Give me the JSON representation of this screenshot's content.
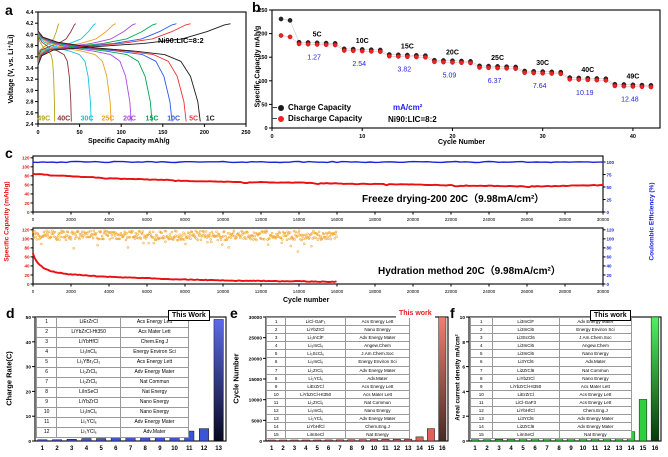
{
  "chart_data": [
    {
      "id": "a",
      "panel_label": "a",
      "type": "line",
      "xlabel": "Specific Capacity mAh/g",
      "ylabel": "Voltage (V, vs. Li⁺/Li)",
      "annotation": "Ni90:LIC=8:2",
      "xlim": [
        0,
        250
      ],
      "xticks": [
        0,
        50,
        100,
        150,
        200,
        250
      ],
      "ylim": [
        2.4,
        4.4
      ],
      "yticks": [
        2.4,
        2.6,
        2.8,
        3.0,
        3.2,
        3.4,
        3.6,
        3.8,
        4.0,
        4.2,
        4.4
      ],
      "series": [
        {
          "rate": "1C",
          "color": "#1a1a1a",
          "discharge_capacity": 195,
          "charge_capacity": 231,
          "label_x": 207
        },
        {
          "rate": "5C",
          "color": "#f03333",
          "discharge_capacity": 178,
          "charge_capacity": 183,
          "label_x": 187
        },
        {
          "rate": "10C",
          "color": "#2b59f0",
          "discharge_capacity": 161,
          "charge_capacity": 166,
          "label_x": 163
        },
        {
          "rate": "15C",
          "color": "#00a551",
          "discharge_capacity": 137,
          "charge_capacity": 142,
          "label_x": 137
        },
        {
          "rate": "20C",
          "color": "#a94ae0",
          "discharge_capacity": 112,
          "charge_capacity": 117,
          "label_x": 110
        },
        {
          "rate": "25C",
          "color": "#e8a31e",
          "discharge_capacity": 88,
          "charge_capacity": 93,
          "label_x": 84
        },
        {
          "rate": "30C",
          "color": "#19c3d8",
          "discharge_capacity": 64,
          "charge_capacity": 69,
          "label_x": 59
        },
        {
          "rate": "40C",
          "color": "#8e3034",
          "discharge_capacity": 40,
          "charge_capacity": 45,
          "label_x": 31
        },
        {
          "rate": "49C",
          "color": "#b8a60e",
          "discharge_capacity": 20,
          "charge_capacity": 25,
          "label_x": 7
        }
      ]
    },
    {
      "id": "b",
      "panel_label": "b",
      "type": "scatter",
      "xlabel": "Cycle Number",
      "ylabel": "Specific Capacity mAh/g",
      "xlim": [
        0,
        43
      ],
      "xticks": [
        0,
        10,
        20,
        30,
        40
      ],
      "ylim": [
        0,
        250
      ],
      "yticks": [
        0,
        50,
        100,
        150,
        200,
        250
      ],
      "legend": [
        {
          "label": "Charge Capacity",
          "color": "#1a1a1a"
        },
        {
          "label": "Discharge Capacity",
          "color": "#ee2222"
        }
      ],
      "note_density_unit": "mA/cm²",
      "note_ratio": "Ni90:LIC=8:2",
      "initial_cycles": {
        "charge": [
          231,
          228
        ],
        "discharge": [
          196,
          193
        ]
      },
      "groups": [
        {
          "rate": "5C",
          "current_density": "1.27",
          "start": 3,
          "end": 7,
          "capacity": 177
        },
        {
          "rate": "10C",
          "current_density": "2.54",
          "start": 8,
          "end": 12,
          "capacity": 163
        },
        {
          "rate": "15C",
          "current_density": "3.82",
          "start": 13,
          "end": 17,
          "capacity": 151
        },
        {
          "rate": "20C",
          "current_density": "5.09",
          "start": 18,
          "end": 22,
          "capacity": 139
        },
        {
          "rate": "25C",
          "current_density": "6.37",
          "start": 23,
          "end": 27,
          "capacity": 127
        },
        {
          "rate": "30C",
          "current_density": "7.64",
          "start": 28,
          "end": 32,
          "capacity": 116
        },
        {
          "rate": "40C",
          "current_density": "10.19",
          "start": 33,
          "end": 37,
          "capacity": 102
        },
        {
          "rate": "49C",
          "current_density": "12.48",
          "start": 38,
          "end": 42,
          "capacity": 88
        }
      ]
    },
    {
      "id": "c",
      "panel_label": "c",
      "type": "line",
      "xlabel": "Cycle number",
      "left_axis_label": "Specific Capacity (mAh/g)",
      "right_axis_label": "Coulombic Efficiency (%)",
      "xlim": [
        0,
        30000
      ],
      "xticks": [
        0,
        2000,
        4000,
        6000,
        8000,
        10000,
        12000,
        14000,
        16000,
        18000,
        20000,
        22000,
        24000,
        26000,
        28000,
        30000
      ],
      "subplots": [
        {
          "annotation": "Freeze drying-200 20C（9.98mA/cm²）",
          "left_ticks": [
            0,
            20,
            40,
            60,
            80,
            100,
            120
          ],
          "right_ticks": [
            0,
            25,
            50,
            75,
            100
          ],
          "capacity_color": "#e81010",
          "efficiency_color": "#1822dc",
          "efficiency_avg": 100,
          "last_cycle": 30000,
          "capacity_points": [
            [
              0,
              84
            ],
            [
              500,
              83
            ],
            [
              1000,
              81
            ],
            [
              2000,
              79
            ],
            [
              3000,
              77
            ],
            [
              4000,
              75
            ],
            [
              5000,
              73
            ],
            [
              6000,
              72
            ],
            [
              7000,
              71
            ],
            [
              8000,
              69
            ],
            [
              9000,
              68
            ],
            [
              10000,
              67
            ],
            [
              11000,
              66
            ],
            [
              12000,
              66
            ],
            [
              13000,
              65
            ],
            [
              14000,
              65
            ],
            [
              15000,
              64
            ],
            [
              16000,
              63
            ],
            [
              17000,
              62
            ],
            [
              18000,
              62
            ],
            [
              19000,
              61
            ],
            [
              20000,
              61
            ],
            [
              21000,
              60
            ],
            [
              22000,
              59
            ],
            [
              23000,
              58
            ],
            [
              24000,
              58
            ],
            [
              25000,
              57
            ],
            [
              26000,
              57
            ],
            [
              27000,
              57
            ],
            [
              28000,
              58
            ],
            [
              29000,
              59
            ],
            [
              30000,
              60
            ]
          ]
        },
        {
          "annotation": "Hydration method 20C（9.98mA/cm²）",
          "left_ticks": [
            0,
            20,
            40,
            60,
            80,
            100,
            120
          ],
          "right_ticks": [
            0,
            20,
            40,
            60,
            80,
            100,
            120
          ],
          "capacity_color": "#e81010",
          "efficiency_color": "#f2a833",
          "efficiency_avg": 105,
          "last_cycle": 16000,
          "capacity_points": [
            [
              0,
              68
            ],
            [
              100,
              56
            ],
            [
              300,
              44
            ],
            [
              600,
              34
            ],
            [
              900,
              29
            ],
            [
              1200,
              26
            ],
            [
              1500,
              24
            ],
            [
              2000,
              21
            ],
            [
              2500,
              20
            ],
            [
              3000,
              18
            ],
            [
              4000,
              16
            ],
            [
              5000,
              14
            ],
            [
              6000,
              13
            ],
            [
              7000,
              11
            ],
            [
              8000,
              10
            ],
            [
              9000,
              9
            ],
            [
              10000,
              8
            ],
            [
              11000,
              7
            ],
            [
              12000,
              7
            ],
            [
              13000,
              6
            ],
            [
              14000,
              6
            ],
            [
              15000,
              5
            ],
            [
              16000,
              5
            ]
          ]
        }
      ]
    },
    {
      "id": "d",
      "panel_label": "d",
      "type": "bar",
      "ylabel": "Charge Rate(C)",
      "ylim": [
        0,
        50
      ],
      "yticks": [
        0,
        10,
        20,
        30,
        40,
        50
      ],
      "categories": [
        1,
        2,
        3,
        4,
        5,
        6,
        7,
        8,
        9,
        10,
        11,
        12,
        13
      ],
      "values": [
        0.5,
        0.5,
        0.7,
        1,
        1,
        2,
        2,
        3,
        3,
        4,
        4,
        5,
        49
      ],
      "bar_color": "#3d55d4",
      "bar_gradient": [
        "#5b6ce8",
        "#07071e"
      ],
      "this_work": "This Work",
      "table": [
        [
          "1",
          "LiErZrCl",
          "Acs Energy Lett"
        ],
        [
          "2",
          "LiYbZrCl-Ht350",
          "Acs Mater Lett"
        ],
        [
          "3",
          "LiYbHfCl",
          "Chem.Eng.J"
        ],
        [
          "4",
          "Li₃InCl₆",
          "Energy Environ Sci"
        ],
        [
          "5",
          "Li₃YBr₃Cl₃",
          "Acs Energy Lett"
        ],
        [
          "6",
          "Li₂ZrCl₆",
          "Adv Energy Mater"
        ],
        [
          "7",
          "Li₂ZrCl₆",
          "Nat Commun"
        ],
        [
          "8",
          "LiInSeCl",
          "Nat Energy"
        ],
        [
          "9",
          "LiYbZrCl",
          "Nano Energy"
        ],
        [
          "10",
          "Li₃InCl₆",
          "Nano Energy"
        ],
        [
          "11",
          "Li₃YCl₆",
          "Adv Energy Mater"
        ],
        [
          "12",
          "Li₃YCl₆",
          "Adv.Mater"
        ]
      ]
    },
    {
      "id": "e",
      "panel_label": "e",
      "type": "bar",
      "ylabel": "Cycle Number",
      "ylim": [
        0,
        30000
      ],
      "yticks": [
        0,
        5000,
        10000,
        15000,
        20000,
        25000,
        30000
      ],
      "categories": [
        1,
        2,
        3,
        4,
        5,
        6,
        7,
        8,
        9,
        10,
        11,
        12,
        13,
        14,
        15,
        16
      ],
      "values": [
        150,
        180,
        200,
        220,
        240,
        260,
        280,
        300,
        320,
        350,
        380,
        400,
        450,
        1000,
        3000,
        30000
      ],
      "bar_color": "#e0605a",
      "bar_gradient": [
        "#f08070",
        "#462a26"
      ],
      "this_work": "This work",
      "this_work_color": "#e82020",
      "table": [
        [
          "1",
          "LiCl-GaF₃",
          "Acs Energy Lett"
        ],
        [
          "2",
          "LiYbZrCl",
          "Nano Energy"
        ],
        [
          "3",
          "Li₃InClF",
          "Adv Energy Mater"
        ],
        [
          "4",
          "Li₃InCl₆",
          "Angew.Chem"
        ],
        [
          "5",
          "Li₃ScCl₆",
          "J.Am.Chem.Soc"
        ],
        [
          "6",
          "Li₃InCl₆",
          "Energy Environ Sci"
        ],
        [
          "7",
          "Li₂ZrCl₆",
          "Adv Energy Mater"
        ],
        [
          "8",
          "Li₃YCl₆",
          "Adv.Mater"
        ],
        [
          "9",
          "LiErZrCl",
          "Acs Energy Lett"
        ],
        [
          "10",
          "LiYbZrCl-Ht350",
          "Acs Mater Lett"
        ],
        [
          "11",
          "Li₂ZrCl₆",
          "Nat Commun"
        ],
        [
          "12",
          "Li₃InCl₆",
          "Nano Energy"
        ],
        [
          "13",
          "Li₃YCl₆",
          "Adv Energy Mater"
        ],
        [
          "14",
          "LiYbHfCl",
          "Chem.Eng.J"
        ],
        [
          "15",
          "LiInSeCl",
          "Nat Energy"
        ]
      ]
    },
    {
      "id": "f",
      "panel_label": "f",
      "type": "bar",
      "ylabel": "Areal current density mA/cm²",
      "ylim": [
        0,
        10
      ],
      "yticks": [
        0,
        2,
        4,
        6,
        8,
        10
      ],
      "categories": [
        1,
        2,
        3,
        4,
        5,
        6,
        7,
        8,
        9,
        10,
        11,
        12,
        13,
        14,
        15,
        16
      ],
      "values": [
        0.1,
        0.1,
        0.14,
        0.16,
        0.18,
        0.2,
        0.3,
        0.5,
        0.55,
        0.6,
        0.6,
        0.65,
        0.75,
        0.75,
        3.35,
        10
      ],
      "bar_color": "#2fcf3e",
      "bar_gradient": [
        "#55ef60",
        "#053a0a"
      ],
      "this_work": "This work",
      "table": [
        [
          "1",
          "Li3InClF",
          "Adv Energy Mater"
        ],
        [
          "2",
          "Li3InCl6",
          "Energy Environ Sci"
        ],
        [
          "3",
          "Li3ScCl6",
          "J.Am.Chem.Soc"
        ],
        [
          "4",
          "Li3InCl6",
          "Angew.Chem"
        ],
        [
          "5",
          "Li3InCl6",
          "Nano Energy"
        ],
        [
          "6",
          "Li3YCl6",
          "Adv.Mater"
        ],
        [
          "7",
          "Li2ZrCl6",
          "Nat Commun"
        ],
        [
          "8",
          "LiYbZrCl",
          "Nano Energy"
        ],
        [
          "9",
          "LiYbZrCl-Ht350",
          "Acs Mater Lett"
        ],
        [
          "10",
          "LiErZrCl",
          "Acs Energy Lett"
        ],
        [
          "11",
          "LiCl-GaF3",
          "Acs Energy Lett"
        ],
        [
          "12",
          "LiYbHfCl",
          "Chem.Eng.J"
        ],
        [
          "13",
          "Li3YCl6",
          "Adv Energy Mater"
        ],
        [
          "14",
          "Li2ZrCl6",
          "Adv Energy Mater"
        ],
        [
          "15",
          "LiInSeCl",
          "Nat Energy"
        ]
      ]
    }
  ]
}
